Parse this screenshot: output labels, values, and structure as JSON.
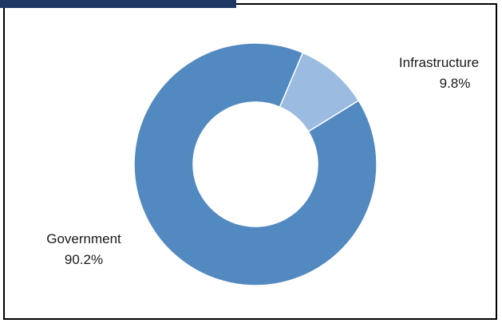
{
  "chart_data": {
    "type": "pie",
    "donut": true,
    "slices": [
      {
        "label": "Infrastructure",
        "value": 9.8,
        "value_label": "9.8%",
        "color": "#9bbbe0"
      },
      {
        "label": "Government",
        "value": 90.2,
        "value_label": "90.2%",
        "color": "#5289c0"
      }
    ]
  },
  "colors": {
    "header_bar": "#1f3864",
    "frame_border": "#000000"
  }
}
